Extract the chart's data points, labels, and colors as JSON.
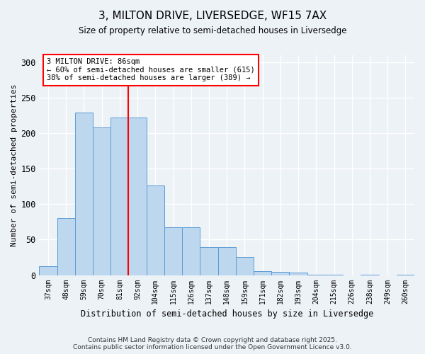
{
  "title": "3, MILTON DRIVE, LIVERSEDGE, WF15 7AX",
  "subtitle": "Size of property relative to semi-detached houses in Liversedge",
  "xlabel": "Distribution of semi-detached houses by size in Liversedge",
  "ylabel": "Number of semi-detached properties",
  "bar_labels": [
    "37sqm",
    "48sqm",
    "59sqm",
    "70sqm",
    "81sqm",
    "92sqm",
    "104sqm",
    "115sqm",
    "126sqm",
    "137sqm",
    "148sqm",
    "159sqm",
    "171sqm",
    "182sqm",
    "193sqm",
    "204sqm",
    "215sqm",
    "226sqm",
    "238sqm",
    "249sqm",
    "260sqm"
  ],
  "bar_values": [
    13,
    80,
    229,
    208,
    222,
    222,
    126,
    67,
    67,
    39,
    39,
    25,
    6,
    5,
    4,
    1,
    1,
    0,
    1,
    0,
    1
  ],
  "bar_color": "#bdd7ee",
  "bar_edge_color": "#5b9bd5",
  "annotation_title": "3 MILTON DRIVE: 86sqm",
  "annotation_line1": "← 60% of semi-detached houses are smaller (615)",
  "annotation_line2": "38% of semi-detached houses are larger (389) →",
  "property_line_x": 4.5,
  "ylim": [
    0,
    310
  ],
  "yticks": [
    0,
    50,
    100,
    150,
    200,
    250,
    300
  ],
  "footnote1": "Contains HM Land Registry data © Crown copyright and database right 2025.",
  "footnote2": "Contains public sector information licensed under the Open Government Licence v3.0.",
  "bg_color": "#edf2f7"
}
